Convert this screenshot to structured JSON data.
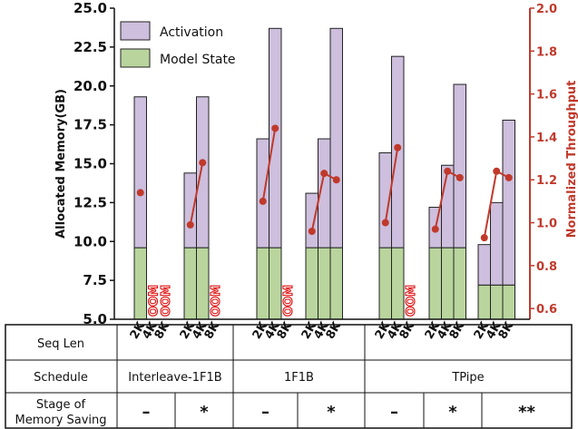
{
  "chart_data": {
    "type": "bar",
    "stacked": true,
    "series_names": [
      "Activation",
      "Model State"
    ],
    "colors": {
      "activation": "#cdbfdd",
      "model_state": "#b9d59d",
      "throughput": "#c0392b",
      "oom": "#e01010"
    },
    "ylabel": "Allocated Memory(GB)",
    "y2label": "Normalized Throughput",
    "ylim": [
      5.0,
      25.0
    ],
    "y2lim": [
      0.55,
      2.0
    ],
    "yticks": [
      "5.0",
      "7.5",
      "10.0",
      "12.5",
      "15.0",
      "17.5",
      "20.0",
      "22.5",
      "25.0"
    ],
    "y2ticks": [
      "0.6",
      "0.8",
      "1.0",
      "1.2",
      "1.4",
      "1.6",
      "1.8",
      "2.0"
    ],
    "legend_position": "top-left",
    "oom_label": "OOM",
    "groups": [
      {
        "schedule": "Interleave-1F1B",
        "stage": "–",
        "bars": [
          {
            "seq": "2K",
            "model_state": 9.6,
            "total": 19.3,
            "throughput": 1.14,
            "oom": false
          },
          {
            "seq": "4K",
            "oom": true
          },
          {
            "seq": "8K",
            "oom": true
          }
        ]
      },
      {
        "schedule": "Interleave-1F1B",
        "stage": "*",
        "bars": [
          {
            "seq": "2K",
            "model_state": 9.6,
            "total": 14.4,
            "throughput": 0.99,
            "oom": false
          },
          {
            "seq": "4K",
            "model_state": 9.6,
            "total": 19.3,
            "throughput": 1.28,
            "oom": false
          },
          {
            "seq": "8K",
            "oom": true
          }
        ]
      },
      {
        "schedule": "1F1B",
        "stage": "–",
        "bars": [
          {
            "seq": "2K",
            "model_state": 9.6,
            "total": 16.6,
            "throughput": 1.1,
            "oom": false
          },
          {
            "seq": "4K",
            "model_state": 9.6,
            "total": 23.7,
            "throughput": 1.44,
            "oom": false
          },
          {
            "seq": "8K",
            "oom": true
          }
        ]
      },
      {
        "schedule": "1F1B",
        "stage": "*",
        "bars": [
          {
            "seq": "2K",
            "model_state": 9.6,
            "total": 13.1,
            "throughput": 0.96,
            "oom": false
          },
          {
            "seq": "4K",
            "model_state": 9.6,
            "total": 16.6,
            "throughput": 1.23,
            "oom": false
          },
          {
            "seq": "8K",
            "model_state": 9.6,
            "total": 23.7,
            "throughput": 1.2,
            "oom": false
          }
        ]
      },
      {
        "schedule": "TPipe",
        "stage": "–",
        "bars": [
          {
            "seq": "2K",
            "model_state": 9.6,
            "total": 15.7,
            "throughput": 1.0,
            "oom": false
          },
          {
            "seq": "4K",
            "model_state": 9.6,
            "total": 21.9,
            "throughput": 1.35,
            "oom": false
          },
          {
            "seq": "8K",
            "oom": true
          }
        ]
      },
      {
        "schedule": "TPipe",
        "stage": "*",
        "bars": [
          {
            "seq": "2K",
            "model_state": 9.6,
            "total": 12.2,
            "throughput": 0.97,
            "oom": false
          },
          {
            "seq": "4K",
            "model_state": 9.6,
            "total": 14.9,
            "throughput": 1.24,
            "oom": false
          },
          {
            "seq": "8K",
            "model_state": 9.6,
            "total": 20.1,
            "throughput": 1.21,
            "oom": false
          }
        ]
      },
      {
        "schedule": "TPipe",
        "stage": "**",
        "bars": [
          {
            "seq": "2K",
            "model_state": 7.2,
            "total": 9.8,
            "throughput": 0.93,
            "oom": false
          },
          {
            "seq": "4K",
            "model_state": 7.2,
            "total": 12.5,
            "throughput": 1.24,
            "oom": false
          },
          {
            "seq": "8K",
            "model_state": 7.2,
            "total": 17.8,
            "throughput": 1.21,
            "oom": false
          }
        ]
      }
    ]
  },
  "table": {
    "row_labels": {
      "seq_len": "Seq Len",
      "schedule": "Schedule",
      "stage_line1": "Stage of",
      "stage_line2": "Memory Saving"
    },
    "schedules": [
      "Interleave-1F1B",
      "1F1B",
      "TPipe"
    ],
    "stages": [
      "–",
      "*",
      "–",
      "*",
      "–",
      "*",
      "**"
    ]
  }
}
